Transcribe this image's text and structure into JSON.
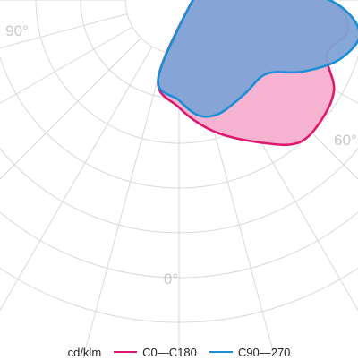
{
  "chart_data": {
    "type": "polar",
    "unit": "cd/klm",
    "angle_labels": [
      "90°",
      "60°",
      "0°"
    ],
    "colors": {
      "grid": "#d9d9d9",
      "label": "#c8c8c8",
      "c0_stroke": "#e0176e",
      "c0_fill": "#f6b3cf",
      "c90_stroke": "#1a8fd6",
      "c90_fill": "#7fa3d6"
    },
    "series": [
      {
        "name": "C0—C180",
        "points": [
          [
            -15,
            0.55
          ],
          [
            0,
            0.75
          ],
          [
            15,
            0.95
          ],
          [
            30,
            1.15
          ],
          [
            40,
            1.3
          ],
          [
            50,
            1.3
          ],
          [
            60,
            1.25
          ],
          [
            70,
            1.1
          ],
          [
            80,
            1.2
          ],
          [
            90,
            1.05
          ],
          [
            100,
            0.55
          ],
          [
            110,
            0.35
          ],
          [
            115,
            0.3
          ],
          [
            125,
            0.2
          ]
        ]
      },
      {
        "name": "C90—270",
        "points": [
          [
            -15,
            0.55
          ],
          [
            0,
            0.7
          ],
          [
            10,
            0.82
          ],
          [
            20,
            0.84
          ],
          [
            35,
            0.8
          ],
          [
            50,
            0.8
          ],
          [
            60,
            1.0
          ],
          [
            70,
            1.2
          ],
          [
            80,
            1.28
          ],
          [
            90,
            1.05
          ],
          [
            100,
            0.55
          ],
          [
            110,
            0.35
          ],
          [
            115,
            0.3
          ],
          [
            125,
            0.2
          ]
        ]
      }
    ]
  },
  "legend": {
    "unit": "cd/klm",
    "c0": "C0—C180",
    "c90": "C90—270"
  }
}
